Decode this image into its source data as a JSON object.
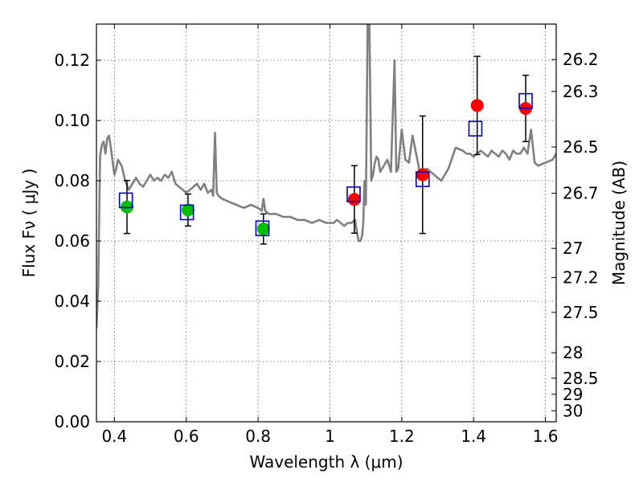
{
  "chart_data": {
    "type": "scatter",
    "title": "",
    "xlabel": "Wavelength  λ (μm)",
    "ylabel": "Flux  Fν  ( μJy )",
    "ylabel_right": "Magnitude (AB)",
    "xlim": [
      0.35,
      1.63
    ],
    "ylim": [
      0.0,
      0.132
    ],
    "grid": true,
    "legend": "none",
    "x_ticks": [
      {
        "value": 0.4,
        "label": "0.4"
      },
      {
        "value": 0.6,
        "label": "0.6"
      },
      {
        "value": 0.8,
        "label": "0.8"
      },
      {
        "value": 1.0,
        "label": "1"
      },
      {
        "value": 1.2,
        "label": "1.2"
      },
      {
        "value": 1.4,
        "label": "1.4"
      },
      {
        "value": 1.6,
        "label": "1.6"
      }
    ],
    "y_ticks": [
      {
        "value": 0.0,
        "label": "0.00"
      },
      {
        "value": 0.02,
        "label": "0.02"
      },
      {
        "value": 0.04,
        "label": "0.04"
      },
      {
        "value": 0.06,
        "label": "0.06"
      },
      {
        "value": 0.08,
        "label": "0.08"
      },
      {
        "value": 0.1,
        "label": "0.10"
      },
      {
        "value": 0.12,
        "label": "0.12"
      }
    ],
    "mag_ticks": [
      {
        "value": 26.2,
        "label": "26.2"
      },
      {
        "value": 26.3,
        "label": "26.3"
      },
      {
        "value": 26.5,
        "label": "26.5"
      },
      {
        "value": 26.7,
        "label": "26.7"
      },
      {
        "value": 27,
        "label": "27"
      },
      {
        "value": 27.2,
        "label": "27.2"
      },
      {
        "value": 27.5,
        "label": "27.5"
      },
      {
        "value": 28,
        "label": "28"
      },
      {
        "value": 28.5,
        "label": "28.5"
      },
      {
        "value": 29,
        "label": "29"
      },
      {
        "value": 30,
        "label": "30"
      }
    ],
    "series": [
      {
        "kind": "line",
        "color": "#808080",
        "x": [
          0.35,
          0.355,
          0.36,
          0.365,
          0.37,
          0.375,
          0.38,
          0.385,
          0.39,
          0.4,
          0.405,
          0.41,
          0.415,
          0.42,
          0.43,
          0.44,
          0.45,
          0.46,
          0.47,
          0.48,
          0.49,
          0.5,
          0.51,
          0.52,
          0.53,
          0.54,
          0.55,
          0.56,
          0.57,
          0.58,
          0.59,
          0.6,
          0.61,
          0.62,
          0.63,
          0.64,
          0.65,
          0.66,
          0.67,
          0.675,
          0.68,
          0.685,
          0.69,
          0.7,
          0.72,
          0.74,
          0.76,
          0.78,
          0.8,
          0.81,
          0.815,
          0.82,
          0.83,
          0.85,
          0.87,
          0.89,
          0.91,
          0.93,
          0.95,
          0.97,
          0.99,
          1.0,
          1.01,
          1.02,
          1.03,
          1.04,
          1.05,
          1.06,
          1.07,
          1.075,
          1.08,
          1.085,
          1.09,
          1.093,
          1.096,
          1.1,
          1.105,
          1.11,
          1.115,
          1.12,
          1.125,
          1.13,
          1.135,
          1.14,
          1.15,
          1.16,
          1.17,
          1.18,
          1.185,
          1.19,
          1.2,
          1.21,
          1.22,
          1.23,
          1.25,
          1.27,
          1.29,
          1.3,
          1.31,
          1.33,
          1.35,
          1.37,
          1.38,
          1.39,
          1.4,
          1.41,
          1.42,
          1.43,
          1.44,
          1.45,
          1.46,
          1.47,
          1.48,
          1.49,
          1.5,
          1.51,
          1.52,
          1.53,
          1.54,
          1.55,
          1.56,
          1.57,
          1.58,
          1.6,
          1.62,
          1.63
        ],
        "y": [
          0.031,
          0.045,
          0.088,
          0.092,
          0.093,
          0.089,
          0.094,
          0.095,
          0.091,
          0.082,
          0.084,
          0.087,
          0.086,
          0.085,
          0.08,
          0.077,
          0.079,
          0.081,
          0.079,
          0.078,
          0.08,
          0.082,
          0.08,
          0.081,
          0.08,
          0.082,
          0.081,
          0.083,
          0.079,
          0.078,
          0.077,
          0.076,
          0.077,
          0.078,
          0.079,
          0.077,
          0.079,
          0.076,
          0.077,
          0.075,
          0.096,
          0.076,
          0.075,
          0.074,
          0.073,
          0.072,
          0.071,
          0.072,
          0.071,
          0.07,
          0.074,
          0.07,
          0.069,
          0.069,
          0.068,
          0.068,
          0.067,
          0.067,
          0.066,
          0.067,
          0.066,
          0.066,
          0.066,
          0.067,
          0.066,
          0.065,
          0.066,
          0.066,
          0.067,
          0.063,
          0.06,
          0.06,
          0.062,
          0.066,
          0.08,
          0.072,
          0.132,
          0.132,
          0.08,
          0.082,
          0.086,
          0.088,
          0.087,
          0.083,
          0.085,
          0.087,
          0.083,
          0.12,
          0.083,
          0.084,
          0.097,
          0.087,
          0.086,
          0.095,
          0.083,
          0.084,
          0.082,
          0.081,
          0.08,
          0.084,
          0.091,
          0.09,
          0.089,
          0.089,
          0.088,
          0.089,
          0.09,
          0.089,
          0.088,
          0.09,
          0.089,
          0.088,
          0.09,
          0.089,
          0.087,
          0.09,
          0.089,
          0.089,
          0.091,
          0.089,
          0.097,
          0.086,
          0.085,
          0.086,
          0.087,
          0.089
        ]
      },
      {
        "kind": "markers",
        "marker": "circle",
        "color": "#00c000",
        "x": [
          0.435,
          0.605,
          0.815
        ],
        "y": [
          0.0713,
          0.0703,
          0.064
        ],
        "yerr": [
          0.0088,
          0.0053,
          0.005
        ]
      },
      {
        "kind": "markers",
        "marker": "circle",
        "color": "#ff0000",
        "x": [
          1.068,
          1.258,
          1.41,
          1.545
        ],
        "y": [
          0.0738,
          0.082,
          0.105,
          0.104
        ],
        "yerr": [
          0.0112,
          0.0195,
          0.0163,
          0.011
        ]
      },
      {
        "kind": "markers",
        "marker": "square",
        "color": "#0000cc",
        "x": [
          0.432,
          0.602,
          0.812,
          1.066,
          1.258,
          1.405,
          1.545
        ],
        "y": [
          0.0735,
          0.0695,
          0.0642,
          0.0755,
          0.0805,
          0.0973,
          0.1065
        ]
      }
    ]
  }
}
